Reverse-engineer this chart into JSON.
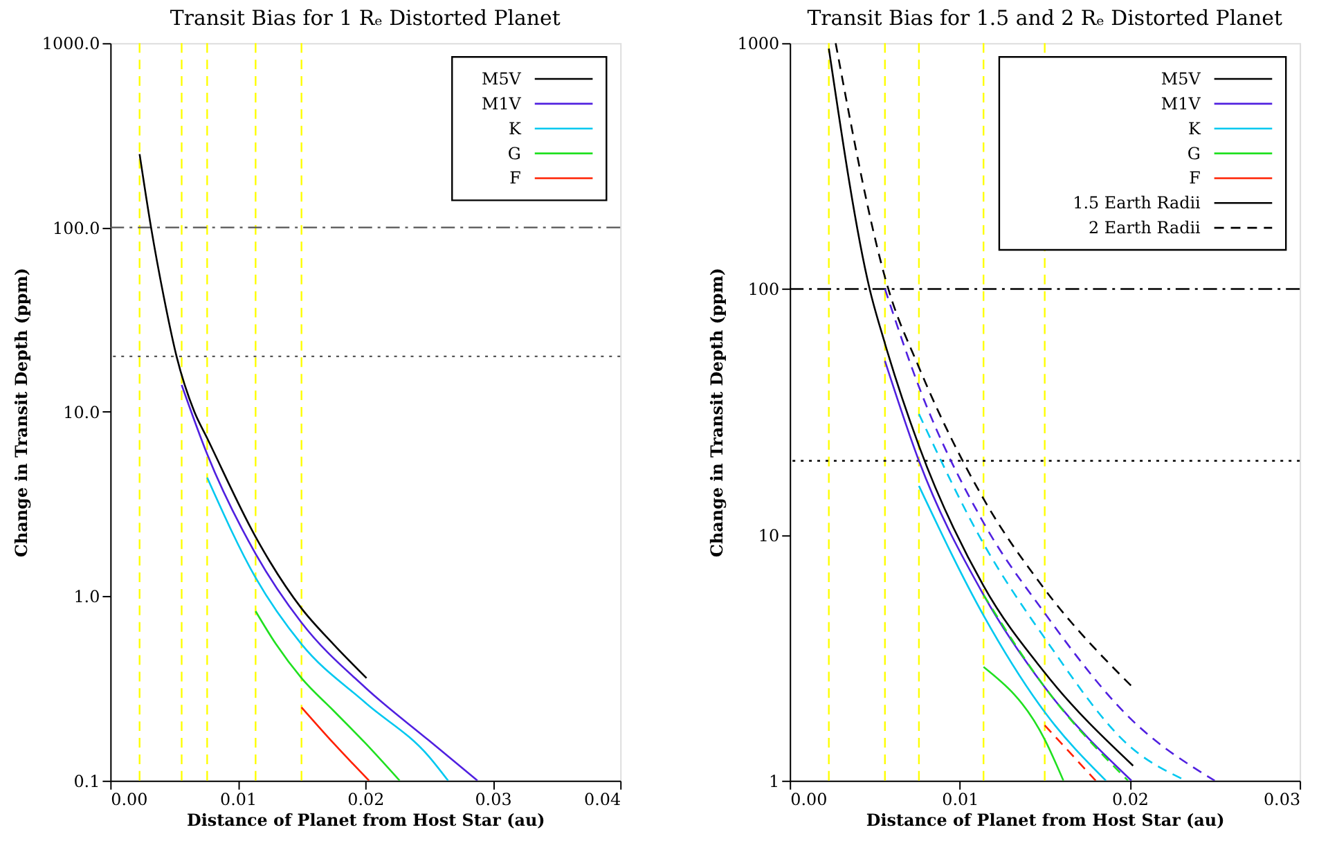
{
  "chart_data": [
    {
      "type": "line",
      "title": "Transit Bias for 1 Rₑ Distorted Planet",
      "xlabel": "Distance of Planet from Host Star (au)",
      "ylabel": "Change in Transit Depth (ppm)",
      "xlim": [
        0,
        0.04
      ],
      "xticks": [
        {
          "value": 0,
          "label": "0.00"
        },
        {
          "value": 0.01,
          "label": "0.01"
        },
        {
          "value": 0.02,
          "label": "0.02"
        },
        {
          "value": 0.03,
          "label": "0.03"
        },
        {
          "value": 0.04,
          "label": "0.04"
        }
      ],
      "ylim": [
        0.1,
        1000
      ],
      "yticks": [
        {
          "value": 0.1,
          "label": "0.1"
        },
        {
          "value": 1,
          "label": "1.0"
        },
        {
          "value": 10,
          "label": "10.0"
        },
        {
          "value": 100,
          "label": "100.0"
        },
        {
          "value": 1000,
          "label": "1000.0"
        }
      ],
      "log": "y",
      "grid": false,
      "legend": "top right",
      "marker": "none",
      "series": [
        {
          "name": "M5V",
          "color": "#000000",
          "line_style": "solid",
          "x": [
            0.0023,
            0.0032,
            0.0042,
            0.0052,
            0.0066,
            0.0076,
            0.0114,
            0.0125,
            0.015,
            0.0175,
            0.0201
          ],
          "values": [
            250,
            100,
            42,
            20,
            10,
            7.2,
            2.1,
            1.55,
            0.86,
            0.55,
            0.36
          ]
        },
        {
          "name": "M1V",
          "color": "#5020e0",
          "line_style": "solid",
          "x": [
            0.0056,
            0.0076,
            0.0114,
            0.015,
            0.02,
            0.025,
            0.0288
          ],
          "values": [
            14,
            5.9,
            1.7,
            0.72,
            0.32,
            0.165,
            0.1
          ]
        },
        {
          "name": "K",
          "color": "#00c8f0",
          "line_style": "solid",
          "x": [
            0.0076,
            0.0114,
            0.015,
            0.02,
            0.025,
            0.0265
          ],
          "values": [
            4.4,
            1.26,
            0.55,
            0.265,
            0.135,
            0.1
          ]
        },
        {
          "name": "G",
          "color": "#20e020",
          "line_style": "solid",
          "x": [
            0.0114,
            0.013,
            0.015,
            0.0175,
            0.02,
            0.0227
          ],
          "values": [
            0.83,
            0.55,
            0.36,
            0.24,
            0.16,
            0.1
          ]
        },
        {
          "name": "F",
          "color": "#ff2000",
          "line_style": "solid",
          "x": [
            0.015,
            0.0175,
            0.0203
          ],
          "values": [
            0.25,
            0.16,
            0.1
          ]
        }
      ],
      "ref_lines": [
        {
          "axis": "y",
          "value": 100,
          "color": "#555555",
          "line_style": "dashdot"
        },
        {
          "axis": "y",
          "value": 20,
          "color": "#555555",
          "line_style": "dotted"
        },
        {
          "axis": "x",
          "value": 0.0023,
          "color": "#ffff00",
          "line_style": "dashed"
        },
        {
          "axis": "x",
          "value": 0.0056,
          "color": "#ffff00",
          "line_style": "dashed"
        },
        {
          "axis": "x",
          "value": 0.0076,
          "color": "#ffff00",
          "line_style": "dashed"
        },
        {
          "axis": "x",
          "value": 0.0114,
          "color": "#ffff00",
          "line_style": "dashed"
        },
        {
          "axis": "x",
          "value": 0.015,
          "color": "#ffff00",
          "line_style": "dashed"
        }
      ]
    },
    {
      "type": "line",
      "title": "Transit Bias for 1.5 and 2 Rₑ Distorted Planet",
      "xlabel": "Distance of Planet from Host Star (au)",
      "ylabel": "Change in Transit Depth (ppm)",
      "xlim": [
        0,
        0.03
      ],
      "xticks": [
        {
          "value": 0,
          "label": "0.00"
        },
        {
          "value": 0.01,
          "label": "0.01"
        },
        {
          "value": 0.02,
          "label": "0.02"
        },
        {
          "value": 0.03,
          "label": "0.03"
        }
      ],
      "ylim": [
        1,
        1000
      ],
      "yticks": [
        1,
        10,
        100,
        1000
      ],
      "log": "y",
      "grid": false,
      "legend": "top right",
      "marker": "none",
      "series": [
        {
          "name": "M5V",
          "color": "#000000",
          "line_style": "solid",
          "x": [
            0.0023,
            0.0047,
            0.0056,
            0.0076,
            0.0114,
            0.015,
            0.0202
          ],
          "values": [
            950,
            100,
            60,
            23,
            6.2,
            2.75,
            1.15
          ]
        },
        {
          "name": "M1V",
          "color": "#5020e0",
          "line_style": "solid",
          "x": [
            0.0056,
            0.0076,
            0.0114,
            0.015,
            0.0201
          ],
          "values": [
            51,
            20,
            5.7,
            2.4,
            1.0
          ]
        },
        {
          "name": "K",
          "color": "#00c8f0",
          "line_style": "solid",
          "x": [
            0.0076,
            0.0114,
            0.015,
            0.0186
          ],
          "values": [
            15.8,
            4.7,
            1.9,
            1.0
          ]
        },
        {
          "name": "G",
          "color": "#20e020",
          "line_style": "solid",
          "x": [
            0.0114,
            0.015,
            0.0161
          ],
          "values": [
            2.9,
            1.47,
            1.0
          ]
        },
        {
          "name": "F",
          "color": "#ff2000",
          "line_style": "solid"
        },
        {
          "name": "1.5 Earth Radii",
          "color": "#000000",
          "line_style": "solid"
        },
        {
          "name": "2 Earth Radii",
          "color": "#000000",
          "line_style": "dashed",
          "x": [
            0.0027,
            0.0058,
            0.0076,
            0.0114,
            0.015,
            0.0203
          ],
          "values": [
            1000,
            100,
            48,
            14,
            6.0,
            2.35
          ]
        },
        {
          "color": "#5020e0",
          "line_style": "dashed",
          "x": [
            0.0056,
            0.0076,
            0.0114,
            0.015,
            0.02,
            0.025
          ],
          "values": [
            100,
            40,
            11.2,
            4.8,
            1.8,
            1.0
          ]
        },
        {
          "color": "#00c8f0",
          "line_style": "dashed",
          "x": [
            0.0076,
            0.0114,
            0.015,
            0.02,
            0.0233
          ],
          "values": [
            31,
            9.2,
            3.8,
            1.38,
            1.0
          ]
        },
        {
          "color": "#20e020",
          "line_style": "dashed",
          "x": [
            0.0114,
            0.015,
            0.0199
          ],
          "values": [
            5.7,
            2.4,
            1.0
          ]
        },
        {
          "color": "#ff2000",
          "line_style": "dashed",
          "x": [
            0.015,
            0.018
          ],
          "values": [
            1.68,
            1.0
          ]
        }
      ],
      "ref_lines": [
        {
          "axis": "y",
          "value": 100,
          "color": "#000000",
          "line_style": "dashdot"
        },
        {
          "axis": "y",
          "value": 20,
          "color": "#000000",
          "line_style": "dotted"
        },
        {
          "axis": "x",
          "value": 0.0023,
          "color": "#ffff00",
          "line_style": "dashed"
        },
        {
          "axis": "x",
          "value": 0.0056,
          "color": "#ffff00",
          "line_style": "dashed"
        },
        {
          "axis": "x",
          "value": 0.0076,
          "color": "#ffff00",
          "line_style": "dashed"
        },
        {
          "axis": "x",
          "value": 0.0114,
          "color": "#ffff00",
          "line_style": "dashed"
        },
        {
          "axis": "x",
          "value": 0.015,
          "color": "#ffff00",
          "line_style": "dashed"
        }
      ]
    }
  ]
}
